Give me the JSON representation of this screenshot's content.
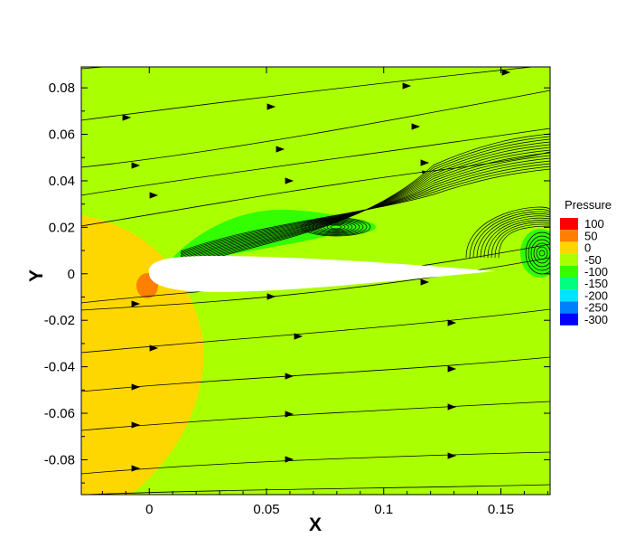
{
  "chart_data": {
    "type": "contour",
    "xlabel": "X",
    "ylabel": "Y",
    "xlim": [
      -0.029,
      0.171
    ],
    "ylim": [
      -0.095,
      0.089
    ],
    "x_ticks": [
      0,
      0.05,
      0.1,
      0.15
    ],
    "x_tick_labels": [
      "0",
      "0.05",
      "0.1",
      "0.15"
    ],
    "y_ticks": [
      0.08,
      0.06,
      0.04,
      0.02,
      0,
      -0.02,
      -0.04,
      -0.06,
      -0.08
    ],
    "y_tick_labels": [
      "0.08",
      "0.06",
      "0.04",
      "0.02",
      "0",
      "-0.02",
      "-0.04",
      "-0.06",
      "-0.08"
    ],
    "grid": false,
    "legend": {
      "title": "Pressure",
      "placement": "right",
      "levels": [
        {
          "label": "100",
          "color": "#ff0000"
        },
        {
          "label": "50",
          "color": "#ff7f00"
        },
        {
          "label": "0",
          "color": "#ffd700"
        },
        {
          "label": "-50",
          "color": "#aaff00"
        },
        {
          "label": "-100",
          "color": "#33ff00"
        },
        {
          "label": "-150",
          "color": "#00ff80"
        },
        {
          "label": "-200",
          "color": "#00e5ff"
        },
        {
          "label": "-250",
          "color": "#0080ff"
        },
        {
          "label": "-300",
          "color": "#0000ff"
        }
      ],
      "bins": [
        "#ff0000",
        "#ff7f00",
        "#ffd700",
        "#aaff00",
        "#33ff00",
        "#00ff80",
        "#00e5ff",
        "#0080ff",
        "#0000ff"
      ]
    },
    "field": {
      "background_color": "#aaff00",
      "stagnation_region_color": "#ffd700",
      "stagnation_peak_color": "#ff7f00",
      "suction_region_color": "#33ff00",
      "vortex_core_color": "#00ff80",
      "airfoil_color": "#ffffff",
      "streamline_color": "#000000"
    },
    "airfoil": {
      "leading_edge_x": 0,
      "trailing_edge_x": 0.148,
      "max_thickness": 0.012
    }
  }
}
